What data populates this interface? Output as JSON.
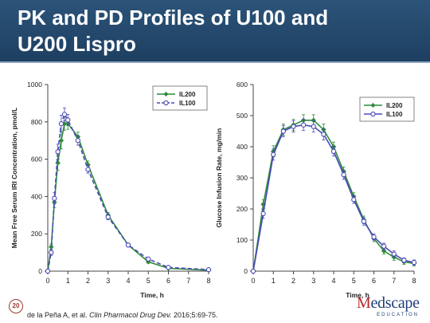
{
  "slide": {
    "title_line1": "PK and PD Profiles of U100 and",
    "title_line2": "U200 Lispro",
    "slide_number": "20",
    "citation_authors": "de la Peña A, et al.",
    "citation_journal": "Clin Pharmacol Drug Dev.",
    "citation_rest": "2016;5:69-75.",
    "logo_text_m": "M",
    "logo_text_rest": "edscape",
    "logo_sub": "EDUCATION"
  },
  "colors": {
    "header_bg": "#1d3f61",
    "il200": "#2e8a3c",
    "il100": "#4a4ab8",
    "logo_red": "#b22a2a",
    "logo_blue": "#1f3e78"
  },
  "chart_data": [
    {
      "type": "line",
      "xlabel": "Time, h",
      "ylabel": "Mean Free Serum IRI Concentration, pmol/L",
      "xlim": [
        0,
        8
      ],
      "ylim": [
        0,
        1000
      ],
      "xticks": [
        0,
        1,
        2,
        3,
        4,
        5,
        6,
        7,
        8
      ],
      "yticks": [
        0,
        200,
        400,
        600,
        800,
        1000
      ],
      "legend_position": "top-right",
      "series": [
        {
          "name": "IL200",
          "style": "solid-diamond",
          "x": [
            0,
            0.17,
            0.33,
            0.5,
            0.67,
            0.83,
            1.0,
            1.5,
            2.0,
            3.0,
            4.0,
            5.0,
            6.0,
            8.0
          ],
          "y": [
            0,
            130,
            370,
            580,
            700,
            790,
            790,
            720,
            570,
            300,
            140,
            50,
            15,
            5
          ],
          "err": [
            0,
            15,
            30,
            40,
            45,
            35,
            30,
            25,
            20,
            15,
            10,
            8,
            5,
            3
          ]
        },
        {
          "name": "IL100",
          "style": "dashed-open-circle",
          "x": [
            0,
            0.17,
            0.33,
            0.5,
            0.67,
            0.83,
            1.0,
            1.5,
            2.0,
            3.0,
            4.0,
            5.0,
            6.0,
            8.0
          ],
          "y": [
            0,
            100,
            390,
            640,
            790,
            840,
            810,
            700,
            545,
            290,
            140,
            65,
            20,
            8
          ],
          "err": [
            0,
            15,
            30,
            40,
            45,
            35,
            30,
            25,
            20,
            15,
            10,
            8,
            5,
            3
          ]
        }
      ]
    },
    {
      "type": "line",
      "xlabel": "Time, h",
      "ylabel": "Glucose Infusion Rate, mg/min",
      "xlim": [
        0,
        8
      ],
      "ylim": [
        0,
        600
      ],
      "xticks": [
        0,
        1,
        2,
        3,
        4,
        5,
        6,
        7,
        8
      ],
      "yticks": [
        0,
        100,
        200,
        300,
        400,
        500,
        600
      ],
      "legend_position": "top-right",
      "series": [
        {
          "name": "IL200",
          "style": "solid-diamond",
          "x": [
            0,
            0.5,
            1.0,
            1.5,
            2.0,
            2.5,
            3.0,
            3.5,
            4.0,
            4.5,
            5.0,
            5.5,
            6.0,
            6.5,
            7.0,
            7.5,
            8.0
          ],
          "y": [
            0,
            215,
            385,
            455,
            470,
            485,
            485,
            455,
            400,
            320,
            240,
            165,
            105,
            65,
            45,
            30,
            25
          ],
          "err": [
            0,
            15,
            18,
            18,
            18,
            18,
            18,
            18,
            15,
            15,
            12,
            12,
            10,
            10,
            10,
            8,
            8
          ]
        },
        {
          "name": "IL100",
          "style": "solid-open-circle",
          "x": [
            0,
            0.5,
            1.0,
            1.5,
            2.0,
            2.5,
            3.0,
            3.5,
            4.0,
            4.5,
            5.0,
            5.5,
            6.0,
            6.5,
            7.0,
            7.5,
            8.0
          ],
          "y": [
            0,
            185,
            375,
            450,
            465,
            470,
            465,
            440,
            385,
            310,
            230,
            160,
            110,
            80,
            55,
            35,
            28
          ],
          "err": [
            0,
            15,
            18,
            18,
            18,
            18,
            18,
            18,
            15,
            15,
            12,
            12,
            10,
            10,
            10,
            8,
            8
          ]
        }
      ]
    }
  ]
}
